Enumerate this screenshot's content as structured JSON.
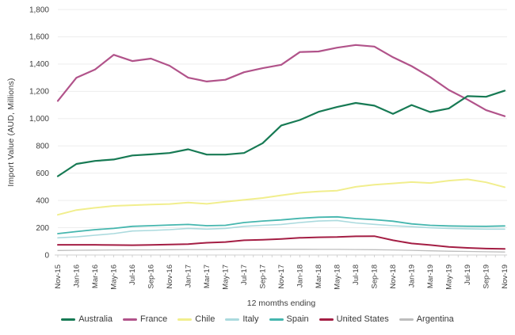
{
  "chart_data": {
    "type": "line",
    "title": "",
    "xlabel": "12 momths ending",
    "ylabel": "Import Value (AUD, Millions)",
    "ylim": [
      0,
      1800
    ],
    "ytick_step": 200,
    "grid": "horizontal",
    "legend_position": "bottom",
    "x": [
      "Nov-15",
      "Jan-16",
      "Mar-16",
      "May-16",
      "Jul-16",
      "Sep-16",
      "Nov-16",
      "Jan-17",
      "Mar-17",
      "May-17",
      "Jul-17",
      "Sep-17",
      "Nov-17",
      "Jan-18",
      "Mar-18",
      "May-18",
      "Jul-18",
      "Sep-18",
      "Nov-18",
      "Jan-19",
      "Mar-19",
      "May-19",
      "Jul-19",
      "Sep-19",
      "Nov-19"
    ],
    "series": [
      {
        "name": "Australia",
        "color": "#177a54",
        "values": [
          578,
          668,
          690,
          700,
          730,
          738,
          748,
          775,
          736,
          736,
          748,
          820,
          950,
          990,
          1050,
          1085,
          1115,
          1095,
          1035,
          1100,
          1048,
          1075,
          1165,
          1160,
          1205
        ]
      },
      {
        "name": "France",
        "color": "#b1538a",
        "values": [
          1130,
          1300,
          1360,
          1468,
          1422,
          1440,
          1388,
          1300,
          1272,
          1285,
          1340,
          1370,
          1395,
          1488,
          1492,
          1520,
          1540,
          1528,
          1450,
          1385,
          1305,
          1210,
          1140,
          1062,
          1018
        ]
      },
      {
        "name": "Chile",
        "color": "#f1ee8d",
        "values": [
          295,
          330,
          346,
          360,
          365,
          370,
          374,
          385,
          375,
          390,
          404,
          418,
          438,
          456,
          466,
          472,
          500,
          515,
          525,
          535,
          528,
          545,
          555,
          533,
          497
        ]
      },
      {
        "name": "Italy",
        "color": "#abdade",
        "values": [
          126,
          133,
          145,
          157,
          176,
          180,
          186,
          195,
          190,
          195,
          210,
          218,
          224,
          238,
          249,
          253,
          235,
          225,
          215,
          208,
          200,
          195,
          192,
          190,
          190
        ]
      },
      {
        "name": "Spain",
        "color": "#45b6ae",
        "values": [
          157,
          172,
          186,
          195,
          210,
          215,
          220,
          224,
          215,
          218,
          238,
          249,
          257,
          269,
          277,
          280,
          267,
          259,
          248,
          228,
          218,
          213,
          211,
          210,
          213
        ]
      },
      {
        "name": "United States",
        "color": "#a41e44",
        "values": [
          75,
          75,
          75,
          73,
          72,
          74,
          77,
          80,
          90,
          95,
          108,
          112,
          118,
          126,
          130,
          132,
          137,
          138,
          108,
          85,
          73,
          60,
          52,
          47,
          45
        ]
      },
      {
        "name": "Argentina",
        "color": "#bdbdbd",
        "values": [
          33,
          35,
          36,
          37,
          38,
          38,
          39,
          40,
          40,
          41,
          41,
          42,
          42,
          42,
          41,
          41,
          40,
          39,
          37,
          34,
          31,
          28,
          26,
          24,
          22
        ]
      }
    ],
    "axis_color": "#cfcfcf",
    "gridline_color": "#ededed",
    "tick_label_color": "#3d3d3d"
  }
}
